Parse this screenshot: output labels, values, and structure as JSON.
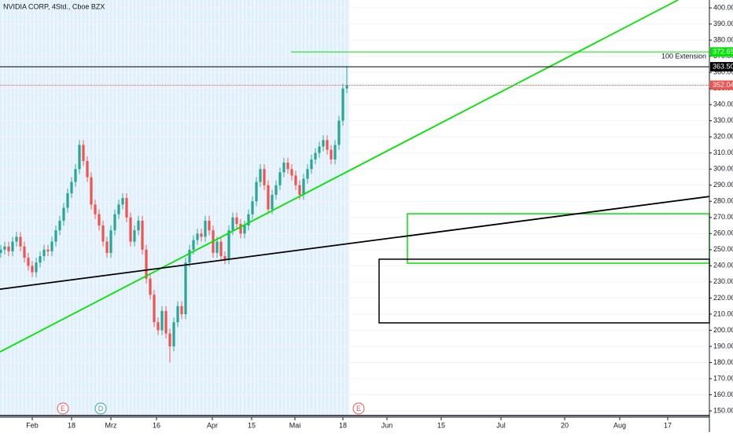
{
  "chart_data": {
    "type": "candlestick",
    "title": "NVIDIA CORP, 4Std., Cboe BZX",
    "up_color": "#26a69a",
    "down_color": "#ef5350",
    "grid": true,
    "xlim": [
      -8.2,
      172.2
    ],
    "ylim": [
      146.6,
      404.9
    ],
    "xticks": [
      {
        "value": 0,
        "label": "Feb"
      },
      {
        "value": 10,
        "label": "18"
      },
      {
        "value": 20,
        "label": "Mrz"
      },
      {
        "value": 31.6,
        "label": "16"
      },
      {
        "value": 45.8,
        "label": "Apr"
      },
      {
        "value": 55.8,
        "label": "15"
      },
      {
        "value": 66.8,
        "label": "Mai"
      },
      {
        "value": 79,
        "label": "18"
      },
      {
        "value": 90.2,
        "label": "Jun"
      },
      {
        "value": 104,
        "label": "15"
      },
      {
        "value": 119.2,
        "label": "Jul"
      },
      {
        "value": 135.4,
        "label": "20"
      },
      {
        "value": 149.4,
        "label": "Aug"
      },
      {
        "value": 161.6,
        "label": "17"
      }
    ],
    "yticks": [
      {
        "value": 150,
        "label": "150.00"
      },
      {
        "value": 160,
        "label": "160.00"
      },
      {
        "value": 170,
        "label": "170.00"
      },
      {
        "value": 180,
        "label": "180.00"
      },
      {
        "value": 190,
        "label": "190.00"
      },
      {
        "value": 200,
        "label": "200.00"
      },
      {
        "value": 210,
        "label": "210.00"
      },
      {
        "value": 220,
        "label": "220.00"
      },
      {
        "value": 230,
        "label": "230.00"
      },
      {
        "value": 240,
        "label": "240.00"
      },
      {
        "value": 250,
        "label": "250.00"
      },
      {
        "value": 260,
        "label": "260.00"
      },
      {
        "value": 270,
        "label": "270.00"
      },
      {
        "value": 280,
        "label": "280.00"
      },
      {
        "value": 290,
        "label": "290.00"
      },
      {
        "value": 300,
        "label": "300.00"
      },
      {
        "value": 310,
        "label": "310.00"
      },
      {
        "value": 320,
        "label": "320.00"
      },
      {
        "value": 330,
        "label": "330.00"
      },
      {
        "value": 340,
        "label": "340.00"
      },
      {
        "value": 350,
        "label": "350.00"
      },
      {
        "value": 360,
        "label": "360.00"
      },
      {
        "value": 370,
        "label": "370.00"
      },
      {
        "value": 380,
        "label": "380.00"
      },
      {
        "value": 390,
        "label": "390.00"
      },
      {
        "value": 400,
        "label": "400.00"
      }
    ],
    "x": [
      -8,
      -7,
      -6,
      -5,
      -4,
      -3,
      -2,
      -1,
      0,
      1,
      2,
      3,
      4,
      5,
      6,
      7,
      8,
      9,
      10,
      11,
      12,
      13,
      14,
      15,
      16,
      17,
      18,
      19,
      20,
      21,
      22,
      23,
      24,
      25,
      26,
      27,
      28,
      29,
      30,
      31,
      32,
      33,
      34,
      35,
      36,
      37,
      38,
      39,
      40,
      41,
      42,
      43,
      44,
      45,
      46,
      47,
      48,
      49,
      50,
      51,
      52,
      53,
      54,
      55,
      56,
      57,
      58,
      59,
      60,
      61,
      62,
      63,
      64,
      65,
      66,
      67,
      68,
      69,
      70,
      71,
      72,
      73,
      74,
      75,
      76,
      77,
      78,
      79,
      80
    ],
    "open": [
      248,
      250,
      252,
      249,
      255,
      258,
      252,
      245,
      240,
      236,
      242,
      246,
      250,
      249,
      255,
      262,
      268,
      276,
      285,
      292,
      300,
      315,
      305,
      295,
      278,
      272,
      265,
      255,
      248,
      262,
      272,
      278,
      282,
      270,
      255,
      262,
      268,
      250,
      232,
      222,
      205,
      200,
      212,
      198,
      190,
      205,
      215,
      210,
      242,
      250,
      256,
      260,
      258,
      268,
      262,
      248,
      255,
      246,
      244,
      262,
      270,
      266,
      260,
      265,
      272,
      280,
      292,
      300,
      290,
      275,
      284,
      290,
      298,
      304,
      300,
      296,
      290,
      284,
      294,
      300,
      306,
      310,
      314,
      318,
      312,
      306,
      315,
      330,
      350
    ],
    "high": [
      253,
      255,
      255,
      258,
      261,
      261,
      255,
      248,
      243,
      245,
      249,
      253,
      253,
      258,
      265,
      271,
      279,
      288,
      295,
      303,
      318,
      318,
      308,
      298,
      281,
      275,
      268,
      258,
      265,
      275,
      281,
      285,
      285,
      273,
      265,
      271,
      271,
      253,
      235,
      225,
      208,
      215,
      215,
      201,
      208,
      218,
      218,
      245,
      253,
      259,
      263,
      263,
      271,
      271,
      265,
      258,
      258,
      249,
      265,
      273,
      273,
      269,
      268,
      275,
      283,
      295,
      303,
      303,
      293,
      287,
      293,
      301,
      307,
      307,
      303,
      299,
      293,
      297,
      303,
      309,
      313,
      317,
      321,
      321,
      315,
      318,
      333,
      353,
      363.5
    ],
    "low": [
      245,
      247,
      246,
      246,
      252,
      249,
      242,
      237,
      233,
      233,
      239,
      243,
      246,
      246,
      252,
      259,
      265,
      273,
      282,
      289,
      297,
      302,
      292,
      275,
      269,
      262,
      252,
      245,
      245,
      259,
      269,
      275,
      267,
      252,
      252,
      259,
      247,
      229,
      219,
      202,
      197,
      197,
      195,
      180,
      187,
      202,
      207,
      207,
      239,
      247,
      253,
      255,
      255,
      259,
      245,
      245,
      243,
      241,
      241,
      259,
      263,
      257,
      257,
      262,
      269,
      277,
      289,
      287,
      272,
      272,
      281,
      287,
      295,
      297,
      293,
      287,
      281,
      281,
      291,
      297,
      303,
      307,
      311,
      309,
      303,
      303,
      312,
      327,
      347
    ],
    "close": [
      250,
      252,
      249,
      255,
      258,
      252,
      245,
      240,
      236,
      242,
      246,
      250,
      249,
      255,
      262,
      268,
      276,
      285,
      292,
      300,
      315,
      305,
      295,
      278,
      272,
      265,
      255,
      248,
      262,
      272,
      278,
      282,
      270,
      255,
      262,
      268,
      250,
      232,
      222,
      205,
      200,
      212,
      198,
      190,
      205,
      215,
      210,
      242,
      250,
      256,
      260,
      258,
      268,
      262,
      248,
      255,
      246,
      244,
      262,
      270,
      266,
      260,
      265,
      272,
      280,
      292,
      300,
      290,
      275,
      284,
      290,
      298,
      304,
      300,
      296,
      290,
      284,
      294,
      300,
      306,
      310,
      314,
      318,
      312,
      306,
      315,
      330,
      350,
      352.04
    ],
    "price_lines": [
      {
        "value": 372.65,
        "color": "#00e600",
        "x_start": 65.8,
        "text": "100 Extension"
      },
      {
        "value": {
          "value": 363.5,
          "label": "363.50"
        },
        "color": "#000000",
        "x_start": -8.2
      },
      {
        "value": 352.04,
        "color": "#ef5350",
        "x_start": -8.2
      }
    ],
    "trend_lines": [
      {
        "color": "#00e600",
        "x": [
          -8.2,
          164.2
        ],
        "y": [
          186.6,
          404.9
        ]
      },
      {
        "color": "#000000",
        "x": [
          -8.2,
          172.2
        ],
        "y": [
          225.5,
          283
        ]
      }
    ],
    "rectangles": [
      {
        "color": "#00e600",
        "x": [
          95.4,
          172.2
        ],
        "y": [
          241.6,
          272.3
        ]
      },
      {
        "color": "#000000",
        "x": [
          88.2,
          172.2
        ],
        "y": [
          204.6,
          244.1
        ]
      }
    ],
    "events": [
      {
        "label": "E",
        "x": 7.8,
        "color": "#ef5350"
      },
      {
        "label": "D",
        "x": 17.4,
        "color": "#26a69a"
      },
      {
        "label": "E",
        "x": 83,
        "color": "#ef5350"
      }
    ]
  }
}
